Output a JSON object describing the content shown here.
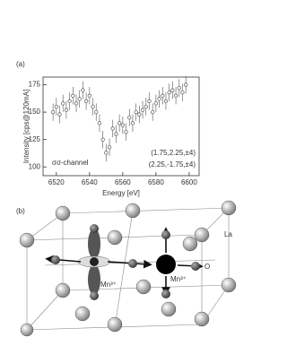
{
  "chart_data": {
    "type": "scatter",
    "panel_label": "(a)",
    "xlabel": "Energy [eV]",
    "ylabel": "Intensity [cps@120mA]",
    "annotations": [
      "σσ-channel",
      "(1.75,2.25,±4)",
      "(2.25,-1.75,±4)"
    ],
    "color": "#555555",
    "x": [
      6518,
      6520,
      6522,
      6524,
      6526,
      6528,
      6530,
      6532,
      6534,
      6536,
      6538,
      6540,
      6542,
      6544,
      6546,
      6548,
      6550,
      6552,
      6554,
      6556,
      6558,
      6560,
      6562,
      6564,
      6566,
      6568,
      6570,
      6572,
      6574,
      6576,
      6578,
      6580,
      6582,
      6584,
      6586,
      6588,
      6590,
      6592,
      6594,
      6596,
      6598
    ],
    "values": [
      150,
      155,
      148,
      158,
      152,
      160,
      165,
      158,
      162,
      170,
      160,
      165,
      155,
      150,
      140,
      125,
      113,
      118,
      135,
      130,
      140,
      138,
      132,
      145,
      140,
      150,
      148,
      152,
      155,
      160,
      150,
      158,
      162,
      165,
      160,
      168,
      170,
      165,
      172,
      168,
      175
    ],
    "errors": [
      8,
      8,
      8,
      8,
      8,
      8,
      8,
      8,
      8,
      8,
      8,
      8,
      8,
      8,
      8,
      8,
      8,
      8,
      8,
      8,
      8,
      8,
      8,
      8,
      8,
      8,
      8,
      8,
      8,
      8,
      8,
      8,
      8,
      8,
      8,
      8,
      8,
      8,
      8,
      8,
      8
    ],
    "xlim": [
      6512,
      6606
    ],
    "ylim": [
      92,
      182
    ],
    "xticks": [
      6520,
      6540,
      6560,
      6580,
      6600
    ],
    "yticks": [
      100,
      125,
      150,
      175
    ]
  },
  "diagram": {
    "panel_label": "(b)",
    "labels": [
      "La",
      "Mn³⁺",
      "Mn³⁺",
      "O"
    ]
  }
}
